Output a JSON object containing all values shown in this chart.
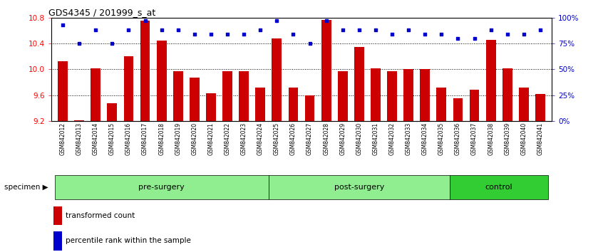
{
  "title": "GDS4345 / 201999_s_at",
  "samples": [
    "GSM842012",
    "GSM842013",
    "GSM842014",
    "GSM842015",
    "GSM842016",
    "GSM842017",
    "GSM842018",
    "GSM842019",
    "GSM842020",
    "GSM842021",
    "GSM842022",
    "GSM842023",
    "GSM842024",
    "GSM842025",
    "GSM842026",
    "GSM842027",
    "GSM842028",
    "GSM842029",
    "GSM842030",
    "GSM842031",
    "GSM842032",
    "GSM842033",
    "GSM842034",
    "GSM842035",
    "GSM842036",
    "GSM842037",
    "GSM842038",
    "GSM842039",
    "GSM842040",
    "GSM842041"
  ],
  "bar_values": [
    10.12,
    9.21,
    10.02,
    9.48,
    10.2,
    10.75,
    10.45,
    9.97,
    9.87,
    9.63,
    9.97,
    9.97,
    9.72,
    10.48,
    9.72,
    9.6,
    10.76,
    9.97,
    10.35,
    10.02,
    9.97,
    10.0,
    10.0,
    9.72,
    9.55,
    9.68,
    10.46,
    10.02,
    9.72,
    9.62
  ],
  "percentile_values": [
    93,
    75,
    88,
    75,
    88,
    97,
    88,
    88,
    84,
    84,
    84,
    84,
    88,
    97,
    84,
    75,
    97,
    88,
    88,
    88,
    84,
    88,
    84,
    84,
    80,
    80,
    88,
    84,
    84,
    88
  ],
  "group_configs": [
    {
      "name": "pre-surgery",
      "start": 0,
      "end": 13,
      "color": "#90EE90"
    },
    {
      "name": "post-surgery",
      "start": 13,
      "end": 24,
      "color": "#90EE90"
    },
    {
      "name": "control",
      "start": 24,
      "end": 30,
      "color": "#32CD32"
    }
  ],
  "ylim_left": [
    9.2,
    10.8
  ],
  "ylim_right": [
    0,
    100
  ],
  "yticks_left": [
    9.2,
    9.6,
    10.0,
    10.4,
    10.8
  ],
  "yticks_right": [
    0,
    25,
    50,
    75,
    100
  ],
  "ytick_right_labels": [
    "0%",
    "25%",
    "50%",
    "75%",
    "100%"
  ],
  "bar_color": "#cc0000",
  "dot_color": "#0000cc",
  "bar_bottom": 9.2,
  "grid_lines": [
    9.6,
    10.0,
    10.4
  ],
  "legend_items": [
    "transformed count",
    "percentile rank within the sample"
  ],
  "legend_colors": [
    "#cc0000",
    "#0000cc"
  ],
  "specimen_label": "specimen",
  "tick_bg_color": "#c8c8c8",
  "fig_bg_color": "#ffffff"
}
